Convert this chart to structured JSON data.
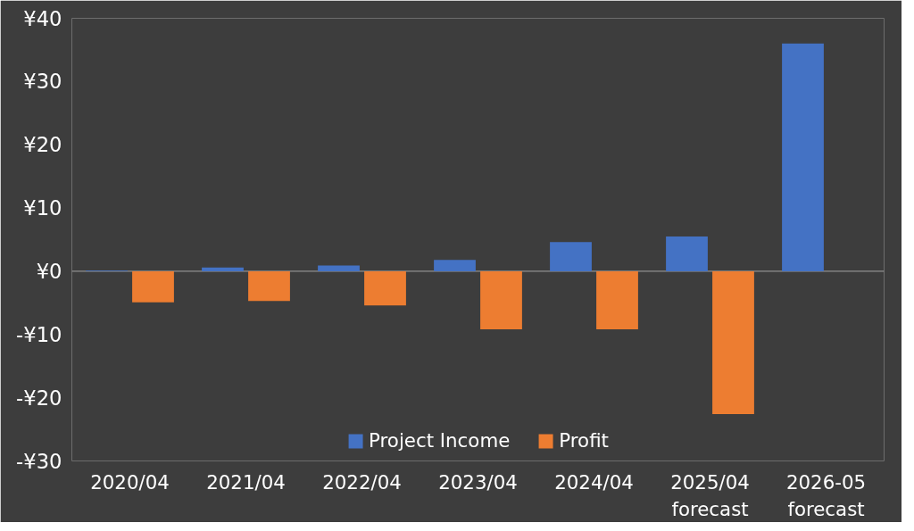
{
  "chart_data": {
    "type": "bar",
    "categories": [
      "2020/04",
      "2021/04",
      "2022/04",
      "2023/04",
      "2024/04",
      "2025/04 forecast",
      "2026-05 forecast"
    ],
    "series": [
      {
        "name": "Project Income",
        "color": "#4472c4",
        "values": [
          0.1,
          0.6,
          0.9,
          1.8,
          4.6,
          5.5,
          36.0
        ]
      },
      {
        "name": "Profit",
        "color": "#ed7d31",
        "values": [
          -4.9,
          -4.7,
          -5.4,
          -9.2,
          -9.2,
          -22.6,
          null
        ]
      }
    ],
    "ylim": [
      -30,
      40
    ],
    "yticks": [
      {
        "value": -30,
        "label": "-¥30"
      },
      {
        "value": -20,
        "label": "-¥20"
      },
      {
        "value": -10,
        "label": "-¥10"
      },
      {
        "value": 0,
        "label": "¥0"
      },
      {
        "value": 10,
        "label": "¥10"
      },
      {
        "value": 20,
        "label": "¥20"
      },
      {
        "value": 30,
        "label": "¥30"
      },
      {
        "value": 40,
        "label": "¥40"
      }
    ],
    "ref_lines": [
      {
        "axis": "y",
        "value": 0,
        "color": "#a6a6a6"
      }
    ],
    "grid": false,
    "legend": "bottom"
  }
}
